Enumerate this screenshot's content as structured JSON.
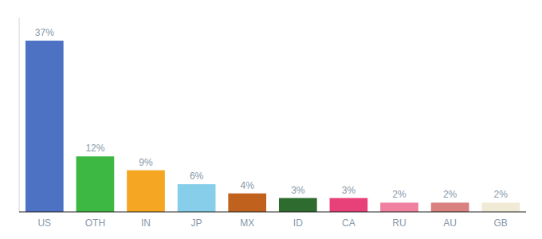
{
  "chart_data": {
    "type": "bar",
    "categories": [
      "US",
      "OTH",
      "IN",
      "JP",
      "MX",
      "ID",
      "CA",
      "RU",
      "AU",
      "GB"
    ],
    "values": [
      37,
      12,
      9,
      6,
      4,
      3,
      3,
      2,
      2,
      2
    ],
    "value_labels": [
      "37%",
      "12%",
      "9%",
      "6%",
      "4%",
      "3%",
      "3%",
      "2%",
      "2%",
      "2%"
    ],
    "colors": [
      "#4d72c4",
      "#3db843",
      "#f5a623",
      "#87ceeb",
      "#c0621e",
      "#2e6b2e",
      "#e8417a",
      "#f080a0",
      "#d98080",
      "#f0ead6"
    ],
    "ylim": [
      0,
      42
    ],
    "data_labels": true,
    "tick_labels": "x",
    "grid": false
  }
}
